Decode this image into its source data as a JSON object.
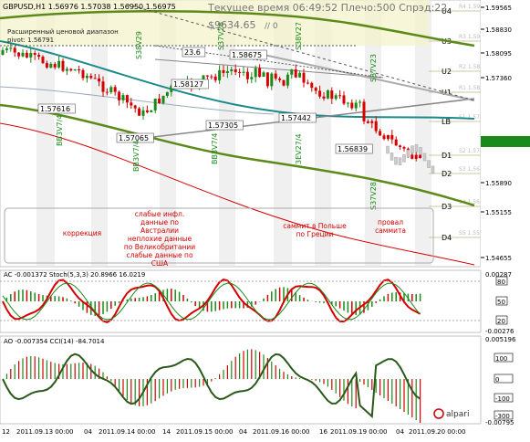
{
  "header": {
    "symbol_line": "GBPUSD,H1  1.56976 1.57038 1.56950 1.56975",
    "status_line": "Текущее время 06:49:52 Плечо:500 Спрэд:22",
    "price_big": "$9634.65",
    "price_small": "// 0",
    "range_note_1": "Расширенный ценовой диапазон",
    "range_note_2": "pivot: 1.56791"
  },
  "price_axis": {
    "ticks": [
      "1.59565",
      "1.58830",
      "1.58095",
      "1.57360",
      "1.56975",
      "1.55890",
      "1.55155",
      "1.54655"
    ]
  },
  "pivot_levels": [
    {
      "label": "U4",
      "price": "R4 1.5981"
    },
    {
      "label": "U3",
      "price": "R3 1.5924"
    },
    {
      "label": "U2",
      "price": "R2 1.5871"
    },
    {
      "label": "U1",
      "price": "R1 1.5885"
    },
    {
      "label": "LB",
      "price": "S1 1.5750"
    },
    {
      "label": "D1",
      "price": "S2 1.5700"
    },
    {
      "label": "D2",
      "price": "S3 1.5650"
    },
    {
      "label": "D3",
      "price": "S4 1.5610"
    },
    {
      "label": "D4",
      "price": "S5 1.5555"
    }
  ],
  "price_labels": [
    {
      "text": "1.58675"
    },
    {
      "text": "1.58127"
    },
    {
      "text": "1.57616"
    },
    {
      "text": "1.57305"
    },
    {
      "text": "1.57442"
    },
    {
      "text": "1.57065"
    },
    {
      "text": "1.56839"
    },
    {
      "text": "23.6"
    }
  ],
  "vertical_labels": [
    "BB3V7/4",
    "BB3V7/4",
    "BB3V7/4",
    "S38V29",
    "S37V26",
    "S38V27",
    "3EV27/4",
    "S37V23",
    "S37V28"
  ],
  "annotations": [
    {
      "text": "коррекция",
      "color": "#d40000"
    },
    {
      "text": "слабые инфл.\nданные по\nАвстралии\nнеплохие данные\nпо Великобритании\nслабые данные по\nСША",
      "color": "#d40000"
    },
    {
      "text": "саммит в Польше\nпо Греции",
      "color": "#d40000"
    },
    {
      "text": "провал\nсаммита",
      "color": "#d40000"
    }
  ],
  "ac_panel": {
    "title": "AC -0.001372  Stoch(5,3,3) 20.8966 16.0219",
    "ticks": [
      "0.00287",
      "80",
      "50",
      "20",
      "-0.00276"
    ]
  },
  "ao_panel": {
    "title": "AO -0.007354  CCI(14) -84.7014",
    "ticks": [
      "0.005196",
      "100",
      "0",
      "-100",
      "-300",
      "-0.00795"
    ]
  },
  "time_axis": {
    "labels": [
      "12",
      "2011.09.13 00:00",
      "04",
      "2011.09.14 00:00",
      "14",
      "2011.09.15 00:00",
      "04",
      "2011.09.16 00:00",
      "16",
      "2011.09.19 00:00",
      "04",
      "2011.09.20 00:00"
    ]
  },
  "logo": {
    "text": "alpari"
  },
  "colors": {
    "bull": "#1a8a1a",
    "bear": "#d40000",
    "band": "#f5f2c8",
    "teal": "#1a8a8a",
    "olive": "#5c8a1a"
  }
}
